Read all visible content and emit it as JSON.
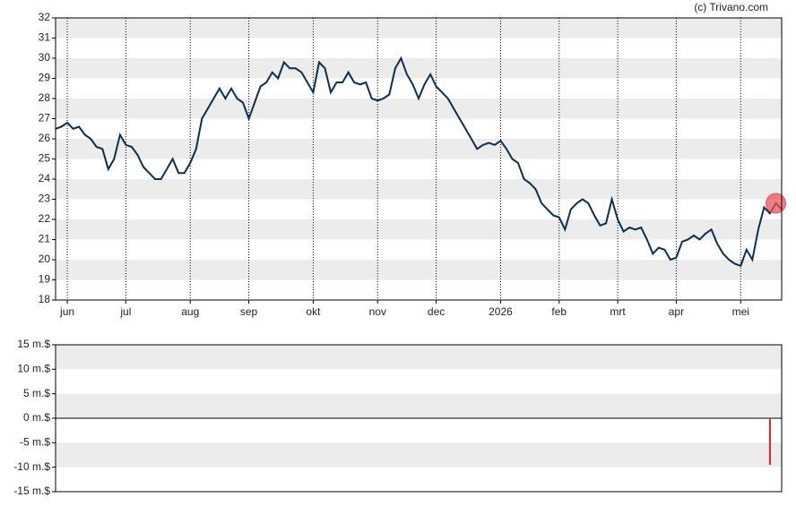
{
  "credit": "(c) Trivano.com",
  "chart_data": [
    {
      "type": "line",
      "categories": [
        null,
        null,
        "jun",
        null,
        null,
        null,
        null,
        null,
        null,
        null,
        null,
        null,
        "jul",
        null,
        null,
        null,
        null,
        null,
        null,
        null,
        null,
        null,
        null,
        "aug",
        null,
        null,
        null,
        null,
        null,
        null,
        null,
        null,
        null,
        "sep",
        null,
        null,
        null,
        null,
        null,
        null,
        null,
        null,
        null,
        null,
        "okt",
        null,
        null,
        null,
        null,
        null,
        null,
        null,
        null,
        null,
        null,
        "nov",
        null,
        null,
        null,
        null,
        null,
        null,
        null,
        null,
        null,
        "dec",
        null,
        null,
        null,
        null,
        null,
        null,
        null,
        null,
        null,
        null,
        "2026",
        null,
        null,
        null,
        null,
        null,
        null,
        null,
        null,
        null,
        "feb",
        null,
        null,
        null,
        null,
        null,
        null,
        null,
        null,
        null,
        "mrt",
        null,
        null,
        null,
        null,
        null,
        null,
        null,
        null,
        null,
        "apr",
        null,
        null,
        null,
        null,
        null,
        null,
        null,
        null,
        null,
        null,
        "mei",
        null,
        null,
        null,
        null,
        null,
        null,
        null
      ],
      "series": [
        {
          "color": "#0d2f4f",
          "values": [
            26.5,
            26.6,
            26.8,
            26.5,
            26.6,
            26.2,
            26.0,
            25.6,
            25.5,
            24.5,
            25.0,
            26.2,
            25.7,
            25.6,
            25.2,
            24.6,
            24.3,
            24.0,
            24.0,
            24.5,
            25.0,
            24.3,
            24.3,
            24.8,
            25.5,
            27.0,
            27.5,
            28.0,
            28.5,
            28.0,
            28.5,
            28.0,
            27.8,
            27.0,
            27.8,
            28.6,
            28.8,
            29.3,
            29.0,
            29.8,
            29.5,
            29.5,
            29.3,
            28.8,
            28.3,
            29.8,
            29.5,
            28.3,
            28.8,
            28.8,
            29.3,
            28.8,
            28.7,
            28.8,
            28.0,
            27.9,
            28.0,
            28.2,
            29.5,
            30.0,
            29.2,
            28.7,
            28.0,
            28.7,
            29.2,
            28.6,
            28.3,
            28.0,
            27.5,
            27.0,
            26.5,
            26.0,
            25.5,
            25.7,
            25.8,
            25.7,
            25.9,
            25.5,
            25.0,
            24.8,
            24.0,
            23.8,
            23.5,
            22.8,
            22.5,
            22.2,
            22.1,
            21.5,
            22.5,
            22.8,
            23.0,
            22.8,
            22.2,
            21.7,
            21.8,
            23.0,
            22.0,
            21.4,
            21.6,
            21.5,
            21.6,
            21.0,
            20.3,
            20.6,
            20.5,
            20.0,
            20.1,
            20.9,
            21.0,
            21.2,
            21.0,
            21.3,
            21.5,
            20.8,
            20.3,
            20.0,
            19.8,
            19.7,
            20.5,
            20.0,
            21.5,
            22.6,
            22.3,
            22.8,
            22.5
          ]
        }
      ],
      "marker_color": "#e8545a",
      "ylim": [
        18,
        32
      ],
      "yticks": [
        18,
        19,
        20,
        21,
        22,
        23,
        24,
        25,
        26,
        27,
        28,
        29,
        30,
        31,
        32
      ],
      "grid": true
    },
    {
      "type": "bar",
      "color": "#e0202a",
      "values": [
        null,
        null,
        null,
        null,
        null,
        null,
        null,
        null,
        null,
        null,
        null,
        null,
        null,
        null,
        null,
        null,
        null,
        null,
        null,
        null,
        null,
        null,
        null,
        null,
        null,
        null,
        null,
        null,
        null,
        null,
        null,
        null,
        null,
        null,
        null,
        null,
        null,
        null,
        null,
        null,
        null,
        null,
        null,
        null,
        null,
        null,
        null,
        null,
        null,
        null,
        null,
        null,
        null,
        null,
        null,
        null,
        null,
        null,
        null,
        null,
        null,
        null,
        null,
        null,
        null,
        null,
        null,
        null,
        null,
        null,
        null,
        null,
        null,
        null,
        null,
        null,
        null,
        null,
        null,
        null,
        null,
        null,
        null,
        null,
        null,
        null,
        null,
        null,
        null,
        null,
        null,
        null,
        null,
        null,
        null,
        null,
        null,
        null,
        null,
        null,
        null,
        null,
        null,
        null,
        null,
        null,
        null,
        null,
        null,
        null,
        null,
        null,
        null,
        null,
        null,
        null,
        null,
        null,
        null,
        null,
        null,
        null,
        -9.5,
        null,
        null
      ],
      "ylim": [
        -15,
        15
      ],
      "yticks": [
        {
          "value": -15,
          "label": "-15 m.$"
        },
        {
          "value": -10,
          "label": "-10 m.$"
        },
        {
          "value": -5,
          "label": "-5 m.$"
        },
        {
          "value": 0,
          "label": "0 m.$"
        },
        {
          "value": 5,
          "label": "5 m.$"
        },
        {
          "value": 10,
          "label": "10 m.$"
        },
        {
          "value": 15,
          "label": "15 m.$"
        }
      ],
      "grid": true
    }
  ]
}
